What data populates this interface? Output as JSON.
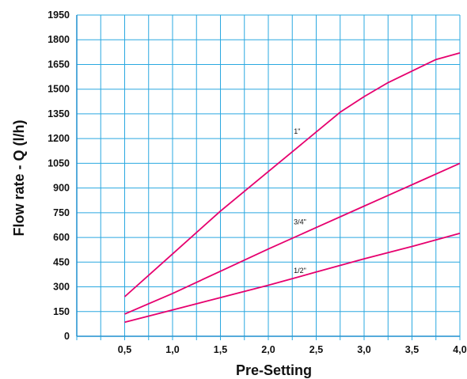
{
  "chart_data": {
    "type": "line",
    "title": "",
    "xlabel": "Pre-Setting",
    "ylabel": "Flow rate - Q (l/h)",
    "xlim": [
      0.0,
      4.0
    ],
    "ylim": [
      0,
      1950
    ],
    "x_ticks": [
      "0,5",
      "1,0",
      "1,5",
      "2,0",
      "2,5",
      "3,0",
      "3,5",
      "4,0"
    ],
    "y_ticks": [
      "0",
      "150",
      "300",
      "450",
      "600",
      "750",
      "900",
      "1050",
      "1200",
      "1350",
      "1500",
      "1650",
      "1800",
      "1950"
    ],
    "grid": true,
    "series": [
      {
        "name": "1\"",
        "color": "#e6006e",
        "x": [
          0.5,
          1.0,
          1.5,
          2.0,
          2.25,
          2.5,
          2.75,
          3.0,
          3.25,
          3.5,
          3.75,
          4.0
        ],
        "y": [
          240,
          500,
          760,
          1000,
          1120,
          1240,
          1360,
          1455,
          1540,
          1610,
          1680,
          1720
        ]
      },
      {
        "name": "3/4\"",
        "color": "#e6006e",
        "x": [
          0.5,
          1.0,
          1.5,
          2.0,
          2.5,
          3.0,
          3.5,
          4.0
        ],
        "y": [
          135,
          260,
          395,
          530,
          660,
          790,
          920,
          1050
        ]
      },
      {
        "name": "1/2\"",
        "color": "#e6006e",
        "x": [
          0.5,
          1.0,
          1.5,
          2.0,
          2.5,
          3.0,
          3.5,
          4.0
        ],
        "y": [
          85,
          160,
          235,
          310,
          390,
          470,
          545,
          625
        ]
      }
    ],
    "annotations": [
      {
        "text": "1\"",
        "x": 2.3,
        "y": 1230
      },
      {
        "text": "3/4\"",
        "x": 2.33,
        "y": 680
      },
      {
        "text": "1/2\"",
        "x": 2.33,
        "y": 385
      }
    ]
  }
}
